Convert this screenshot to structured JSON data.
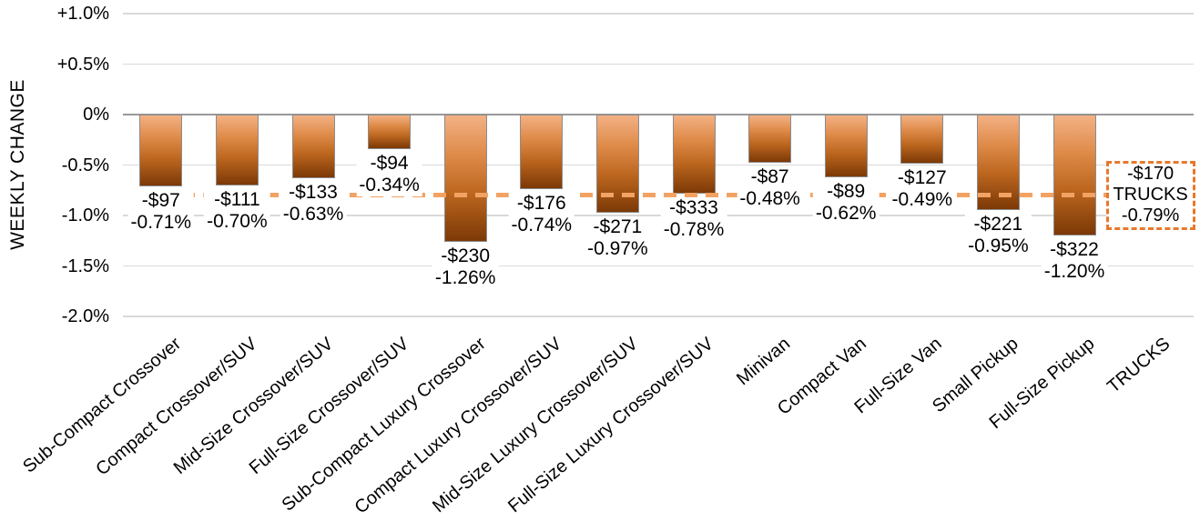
{
  "chart_data": {
    "type": "bar",
    "title": "",
    "y_axis": {
      "title": "WEEKLY CHANGE",
      "ticks": [
        {
          "label": "+1.0%",
          "value": 1.0
        },
        {
          "label": "+0.5%",
          "value": 0.5
        },
        {
          "label": "0%",
          "value": 0.0
        },
        {
          "label": "-0.5%",
          "value": -0.5
        },
        {
          "label": "-1.0%",
          "value": -1.0
        },
        {
          "label": "-1.5%",
          "value": -1.5
        },
        {
          "label": "-2.0%",
          "value": -2.0
        }
      ],
      "ylim": [
        -2.0,
        1.0
      ],
      "grid": "horizontal"
    },
    "categories": [
      "Sub-Compact Crossover",
      "Compact Crossover/SUV",
      "Mid-Size Crossover/SUV",
      "Full-Size Crossover/SUV",
      "Sub-Compact Luxury Crossover",
      "Compact Luxury Crossover/SUV",
      "Mid-Size Luxury Crossover/SUV",
      "Full-Size Luxury Crossover/SUV",
      "Minivan",
      "Compact Van",
      "Full-Size Van",
      "Small Pickup",
      "Full-Size Pickup",
      "TRUCKS"
    ],
    "bars": [
      {
        "category": "Sub-Compact Crossover",
        "dollar": -97,
        "pct": -0.71,
        "dollar_label": "-$97",
        "pct_label": "-0.71%"
      },
      {
        "category": "Compact Crossover/SUV",
        "dollar": -111,
        "pct": -0.7,
        "dollar_label": "-$111",
        "pct_label": "-0.70%"
      },
      {
        "category": "Mid-Size Crossover/SUV",
        "dollar": -133,
        "pct": -0.63,
        "dollar_label": "-$133",
        "pct_label": "-0.63%"
      },
      {
        "category": "Full-Size Crossover/SUV",
        "dollar": -94,
        "pct": -0.34,
        "dollar_label": "-$94",
        "pct_label": "-0.34%"
      },
      {
        "category": "Sub-Compact Luxury Crossover",
        "dollar": -230,
        "pct": -1.26,
        "dollar_label": "-$230",
        "pct_label": "-1.26%"
      },
      {
        "category": "Compact Luxury Crossover/SUV",
        "dollar": -176,
        "pct": -0.74,
        "dollar_label": "-$176",
        "pct_label": "-0.74%"
      },
      {
        "category": "Mid-Size Luxury Crossover/SUV",
        "dollar": -271,
        "pct": -0.97,
        "dollar_label": "-$271",
        "pct_label": "-0.97%"
      },
      {
        "category": "Full-Size Luxury Crossover/SUV",
        "dollar": -333,
        "pct": -0.78,
        "dollar_label": "-$333",
        "pct_label": "-0.78%"
      },
      {
        "category": "Minivan",
        "dollar": -87,
        "pct": -0.48,
        "dollar_label": "-$87",
        "pct_label": "-0.48%"
      },
      {
        "category": "Compact Van",
        "dollar": -89,
        "pct": -0.62,
        "dollar_label": "-$89",
        "pct_label": "-0.62%"
      },
      {
        "category": "Full-Size Van",
        "dollar": -127,
        "pct": -0.49,
        "dollar_label": "-$127",
        "pct_label": "-0.49%"
      },
      {
        "category": "Small Pickup",
        "dollar": -221,
        "pct": -0.95,
        "dollar_label": "-$221",
        "pct_label": "-0.95%"
      },
      {
        "category": "Full-Size Pickup",
        "dollar": -322,
        "pct": -1.2,
        "dollar_label": "-$322",
        "pct_label": "-1.20%"
      }
    ],
    "trucks_reference": {
      "category": "TRUCKS",
      "dollar": -170,
      "pct": -0.79,
      "lines": [
        "-$170",
        "TRUCKS",
        "-0.79%"
      ],
      "style": "dashed-line-with-callout"
    },
    "colors": {
      "bar_gradient": [
        "#F3B184",
        "#DE8A48",
        "#BC661F",
        "#7C3906"
      ],
      "bar_border": "#8C8C8C",
      "gridline": "#D9D9D9",
      "zero_line": "#999999",
      "avg_line": "#F2A263",
      "callout_border": "#E8782C",
      "text": "#000000",
      "background": "#FFFFFF"
    },
    "legend": "none"
  }
}
